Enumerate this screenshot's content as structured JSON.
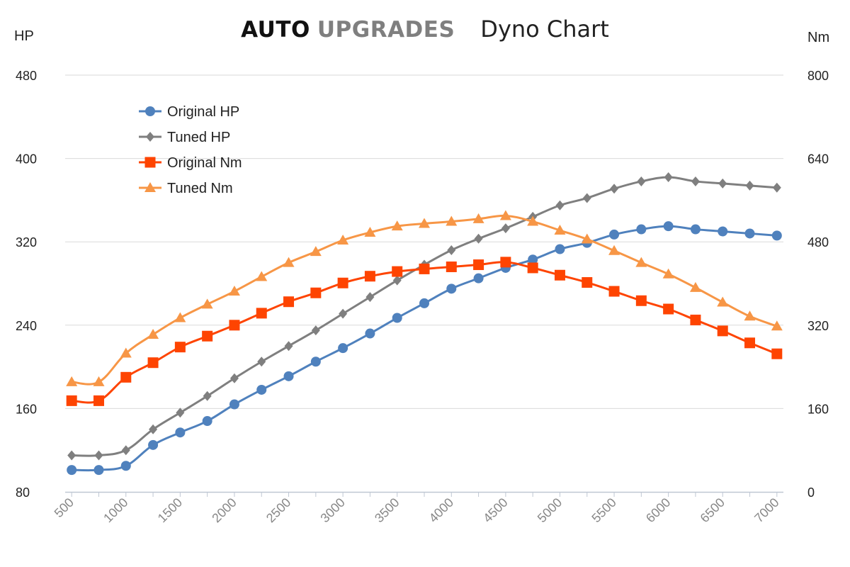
{
  "header": {
    "brand_bold": "AUTO",
    "brand_gray": "UPGRADES",
    "title": "Dyno Chart",
    "left_unit": "HP",
    "right_unit": "Nm"
  },
  "colors": {
    "original_hp": "#4f81bd",
    "tuned_hp": "#7f7f7f",
    "original_nm": "#fe4401",
    "tuned_nm": "#f79646",
    "grid": "#d9d9d9",
    "axis": "#bfc7d3",
    "tick_label": "#888888"
  },
  "chart_data": {
    "type": "line",
    "title": "Dyno Chart",
    "x": [
      500,
      750,
      1000,
      1250,
      1500,
      1750,
      2000,
      2250,
      2500,
      2750,
      3000,
      3250,
      3500,
      3750,
      4000,
      4250,
      4500,
      4750,
      5000,
      5250,
      5500,
      5750,
      6000,
      6250,
      6500,
      6750,
      7000
    ],
    "x_tick_labels": [
      "500",
      "1000",
      "1500",
      "2000",
      "2500",
      "3000",
      "3500",
      "4000",
      "4500",
      "5000",
      "5500",
      "6000",
      "6500",
      "7000"
    ],
    "x_ticks": [
      500,
      1000,
      1500,
      2000,
      2500,
      3000,
      3500,
      4000,
      4500,
      5000,
      5500,
      6000,
      6500,
      7000
    ],
    "ylabel_left": "HP",
    "ylabel_right": "Nm",
    "ylim_left": [
      80,
      480
    ],
    "ylim_right": [
      0,
      800
    ],
    "y_ticks_left": [
      80,
      160,
      240,
      320,
      400,
      480
    ],
    "y_ticks_right": [
      0,
      160,
      320,
      480,
      640,
      800
    ],
    "grid": true,
    "legend_position": "top-left",
    "series": [
      {
        "name": "Original HP",
        "axis": "left",
        "marker": "circle",
        "values": [
          101,
          101,
          105,
          125,
          137,
          148,
          164,
          178,
          191,
          205,
          218,
          232,
          247,
          261,
          275,
          285,
          295,
          303,
          313,
          319,
          327,
          332,
          335,
          332,
          330,
          328,
          326
        ]
      },
      {
        "name": "Tuned HP",
        "axis": "left",
        "marker": "diamond",
        "values": [
          115,
          115,
          120,
          140,
          156,
          172,
          189,
          205,
          220,
          235,
          251,
          267,
          283,
          298,
          312,
          323,
          333,
          344,
          355,
          362,
          371,
          378,
          382,
          378,
          376,
          374,
          372
        ]
      },
      {
        "name": "Original Nm",
        "axis": "right",
        "marker": "square",
        "values": [
          175,
          175,
          220,
          248,
          278,
          299,
          320,
          343,
          365,
          382,
          401,
          414,
          423,
          428,
          432,
          436,
          441,
          430,
          416,
          402,
          385,
          367,
          351,
          330,
          309,
          286,
          265
        ]
      },
      {
        "name": "Tuned Nm",
        "axis": "right",
        "marker": "triangle",
        "values": [
          211,
          211,
          266,
          302,
          334,
          360,
          385,
          413,
          440,
          461,
          483,
          498,
          510,
          515,
          519,
          524,
          530,
          519,
          502,
          485,
          463,
          440,
          418,
          392,
          364,
          337,
          318
        ]
      }
    ]
  }
}
